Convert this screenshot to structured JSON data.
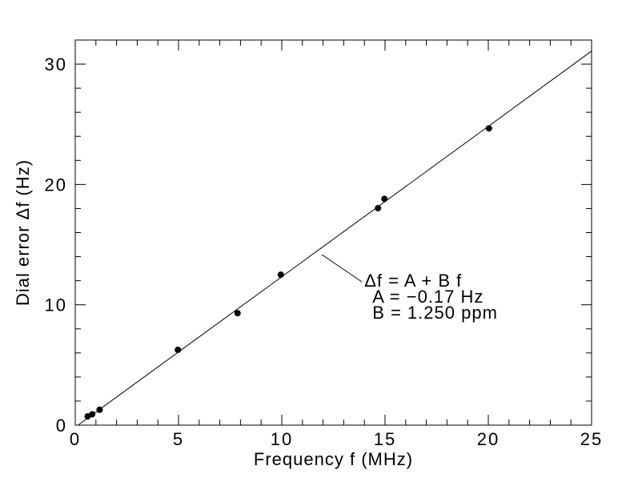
{
  "page": {
    "background_color": "#ffffff",
    "foreground_color": "#000000"
  },
  "chart_data": {
    "type": "scatter",
    "title": "",
    "xlabel": "Frequency f (MHz)",
    "ylabel": "Dial error Δf (Hz)",
    "xlim": [
      0,
      25
    ],
    "ylim": [
      0,
      32
    ],
    "x_major_step": 5,
    "x_minor_step": 1,
    "y_major_step": 10,
    "y_minor_step": 2,
    "x_tick_labels": [
      "0",
      "5",
      "10",
      "15",
      "20",
      "25"
    ],
    "y_tick_labels": [
      "0",
      "10",
      "20",
      "30"
    ],
    "grid": false,
    "legend": "none",
    "marker": "filled-circle",
    "points": [
      {
        "f_mhz": 0.6,
        "df_hz": 0.73
      },
      {
        "f_mhz": 0.82,
        "df_hz": 0.9
      },
      {
        "f_mhz": 1.18,
        "df_hz": 1.28
      },
      {
        "f_mhz": 4.97,
        "df_hz": 6.26
      },
      {
        "f_mhz": 7.86,
        "df_hz": 9.3
      },
      {
        "f_mhz": 9.95,
        "df_hz": 12.5
      },
      {
        "f_mhz": 14.66,
        "df_hz": 18.03
      },
      {
        "f_mhz": 14.97,
        "df_hz": 18.8
      },
      {
        "f_mhz": 20.03,
        "df_hz": 24.66
      }
    ],
    "fit_line": {
      "equation": "Δf = A + B f",
      "A_hz": -0.17,
      "B_ppm": 1.25
    },
    "annotation": {
      "lines": [
        "Δf = A + B f",
        "A = −0.17 Hz",
        "B = 1.250 ppm"
      ],
      "anchor_f_mhz": 14.0,
      "anchor_df_hz": 11.5,
      "leader_start": {
        "f_mhz": 11.94,
        "df_hz": 14.17
      },
      "leader_end": {
        "f_mhz": 13.88,
        "df_hz": 11.91
      }
    },
    "colors": {
      "foreground": "#000000",
      "background": "#ffffff"
    }
  }
}
